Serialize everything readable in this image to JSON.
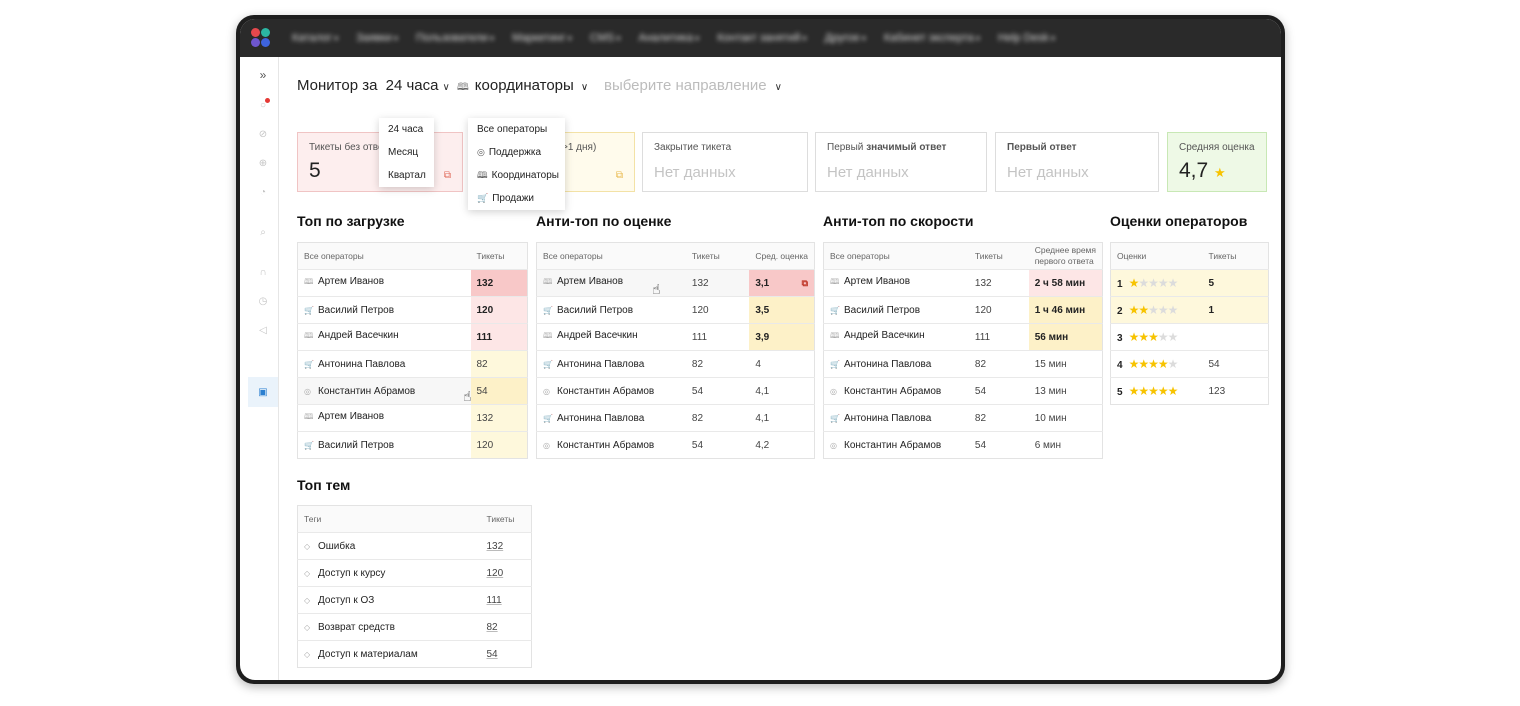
{
  "nav": {
    "items": [
      "Каталог",
      "Заявки",
      "Пользователи",
      "Маркетинг",
      "CMS",
      "Аналитика",
      "Контакт занятий",
      "Другое",
      "Кабинет эксперта",
      "Help Desk"
    ]
  },
  "header": {
    "monitor_label": "Монитор за",
    "period_value": "24 часа",
    "direction_value": "координаторы",
    "direction_placeholder": "выберите направление"
  },
  "period_dropdown": {
    "options": [
      "24 часа",
      "Месяц",
      "Квартал"
    ]
  },
  "direction_dropdown": {
    "options": [
      "Все операторы",
      "Поддержка",
      "Координаторы",
      "Продажи"
    ]
  },
  "cards": [
    {
      "title": "Тикеты без ответа",
      "value": "5"
    },
    {
      "title": ">1 дня)",
      "value": ""
    },
    {
      "title": "Закрытие тикета",
      "value": "Нет данных"
    },
    {
      "title_prefix": "Первый",
      "title_bold": "значимый ответ",
      "value": "Нет данных"
    },
    {
      "title_bold": "Первый ответ",
      "value": "Нет данных"
    },
    {
      "title": "Средняя оценка",
      "value": "4,7"
    }
  ],
  "top_load": {
    "title": "Топ по загрузке",
    "headers": [
      "Все операторы",
      "Тикеты"
    ],
    "rows": [
      {
        "icon": "book-icon",
        "name": "Артем Иванов",
        "value": "132"
      },
      {
        "icon": "cart-icon",
        "name": "Василий Петров",
        "value": "120"
      },
      {
        "icon": "book-icon",
        "name": "Андрей Васечкин",
        "value": "111"
      },
      {
        "icon": "cart-icon",
        "name": "Антонина Павлова",
        "value": "82"
      },
      {
        "icon": "globe-icon",
        "name": "Константин Абрамов",
        "value": "54"
      },
      {
        "icon": "book-icon",
        "name": "Артем Иванов",
        "value": "132"
      },
      {
        "icon": "cart-icon",
        "name": "Василий Петров",
        "value": "120"
      }
    ]
  },
  "anti_rating": {
    "title": "Анти-топ по оценке",
    "headers": [
      "Все операторы",
      "Тикеты",
      "Сред. оценка"
    ],
    "rows": [
      {
        "icon": "book-icon",
        "name": "Артем Иванов",
        "tickets": "132",
        "value": "3,1"
      },
      {
        "icon": "cart-icon",
        "name": "Василий Петров",
        "tickets": "120",
        "value": "3,5"
      },
      {
        "icon": "book-icon",
        "name": "Андрей Васечкин",
        "tickets": "111",
        "value": "3,9"
      },
      {
        "icon": "cart-icon",
        "name": "Антонина Павлова",
        "tickets": "82",
        "value": "4"
      },
      {
        "icon": "globe-icon",
        "name": "Константин Абрамов",
        "tickets": "54",
        "value": "4,1"
      },
      {
        "icon": "cart-icon",
        "name": "Антонина Павлова",
        "tickets": "82",
        "value": "4,1"
      },
      {
        "icon": "globe-icon",
        "name": "Константин Абрамов",
        "tickets": "54",
        "value": "4,2"
      }
    ]
  },
  "anti_speed": {
    "title": "Анти-топ по скорости",
    "headers": [
      "Все операторы",
      "Тикеты",
      "Среднее время",
      "первого ответа"
    ],
    "rows": [
      {
        "icon": "book-icon",
        "name": "Артем Иванов",
        "tickets": "132",
        "value": "2 ч 58 мин"
      },
      {
        "icon": "cart-icon",
        "name": "Василий Петров",
        "tickets": "120",
        "value": "1 ч 46 мин"
      },
      {
        "icon": "book-icon",
        "name": "Андрей Васечкин",
        "tickets": "111",
        "value": "56 мин"
      },
      {
        "icon": "cart-icon",
        "name": "Антонина Павлова",
        "tickets": "82",
        "value": "15 мин"
      },
      {
        "icon": "globe-icon",
        "name": "Константин Абрамов",
        "tickets": "54",
        "value": "13 мин"
      },
      {
        "icon": "cart-icon",
        "name": "Антонина Павлова",
        "tickets": "82",
        "value": "10 мин"
      },
      {
        "icon": "globe-icon",
        "name": "Константин Абрамов",
        "tickets": "54",
        "value": "6 мин"
      }
    ]
  },
  "ratings": {
    "title": "Оценки операторов",
    "headers": [
      "Оценки",
      "Тикеты"
    ],
    "rows": [
      {
        "grade": "1",
        "stars": 1,
        "tickets": "5"
      },
      {
        "grade": "2",
        "stars": 2,
        "tickets": "1"
      },
      {
        "grade": "3",
        "stars": 3,
        "tickets": ""
      },
      {
        "grade": "4",
        "stars": 4,
        "tickets": "54"
      },
      {
        "grade": "5",
        "stars": 5,
        "tickets": "123"
      }
    ]
  },
  "top_topics": {
    "title": "Топ тем",
    "headers": [
      "Теги",
      "Тикеты"
    ],
    "rows": [
      {
        "name": "Ошибка",
        "value": "132"
      },
      {
        "name": "Доступ к курсу",
        "value": "120"
      },
      {
        "name": "Доступ к ОЗ",
        "value": "111"
      },
      {
        "name": "Возврат средств",
        "value": "82"
      },
      {
        "name": "Доступ к материалам",
        "value": "54"
      }
    ]
  },
  "colors": {
    "danger_bg": "#f8c8c8",
    "warning_bg": "#fdf1c8",
    "success_bg": "#eef9e6",
    "star": "#f7c300"
  }
}
